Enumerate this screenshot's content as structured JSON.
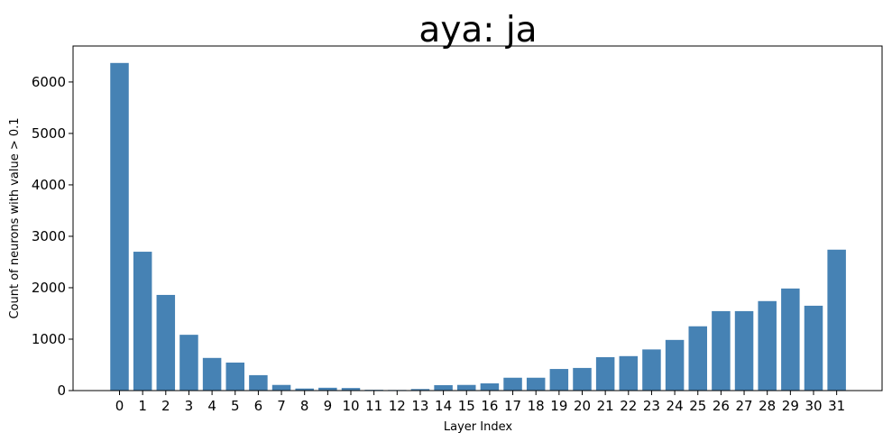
{
  "chart_data": {
    "type": "bar",
    "title": "aya: ja",
    "xlabel": "Layer Index",
    "ylabel": "Count of neurons with value > 0.1",
    "categories": [
      "0",
      "1",
      "2",
      "3",
      "4",
      "5",
      "6",
      "7",
      "8",
      "9",
      "10",
      "11",
      "12",
      "13",
      "14",
      "15",
      "16",
      "17",
      "18",
      "19",
      "20",
      "21",
      "22",
      "23",
      "24",
      "25",
      "26",
      "27",
      "28",
      "29",
      "30",
      "31"
    ],
    "values": [
      6370,
      2700,
      1860,
      1085,
      635,
      545,
      300,
      110,
      40,
      55,
      50,
      15,
      12,
      30,
      105,
      110,
      140,
      250,
      250,
      420,
      440,
      650,
      670,
      800,
      985,
      1250,
      1545,
      1545,
      1740,
      1985,
      1650,
      2740
    ],
    "yticks": [
      0,
      1000,
      2000,
      3000,
      4000,
      5000,
      6000
    ],
    "ylim": [
      0,
      6700
    ],
    "bar_color": "#4682b4",
    "grid": false,
    "legend": false
  }
}
